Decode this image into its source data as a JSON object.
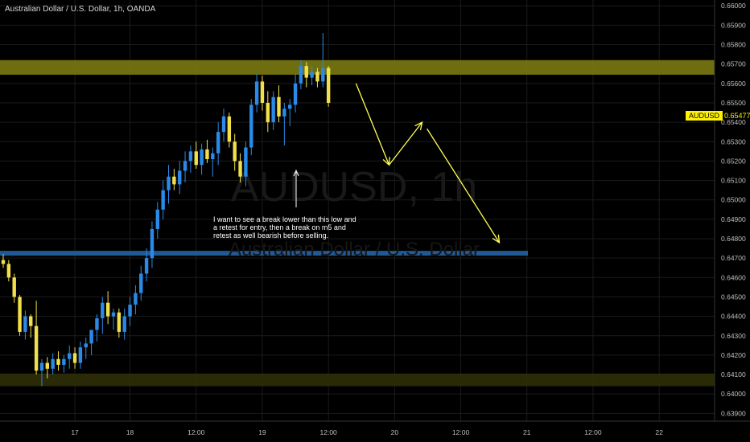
{
  "header": {
    "title": "Australian Dollar / U.S. Dollar, 1h, OANDA"
  },
  "watermark": {
    "symbol": "AUDUSD, 1h",
    "name": "Australian Dollar / U.S. Dollar"
  },
  "last_price": {
    "symbol": "AUDUSD",
    "value": "0.65477"
  },
  "annotation": {
    "lines": [
      "I want to see a break lower than this low and",
      "a retest for entry, then a break on m5 and",
      "retest as well bearish before selling."
    ]
  },
  "colors": {
    "background": "#000000",
    "bull": "#2b8ae8",
    "bear": "#f2e04a",
    "resistance_zone": "#7a7a12",
    "support_zone": "#2f2f08",
    "support_line": "#1f5a96",
    "arrows": "#ffff55",
    "grid": "#1b1b1b"
  },
  "chart_data": {
    "type": "candlestick",
    "symbol": "AUDUSD",
    "interval": "1h",
    "source": "OANDA",
    "ylim": [
      0.6386,
      0.6603
    ],
    "y_ticks": [
      "0.66000",
      "0.65900",
      "0.65800",
      "0.65700",
      "0.65600",
      "0.65500",
      "0.65400",
      "0.65300",
      "0.65200",
      "0.65100",
      "0.65000",
      "0.64900",
      "0.64800",
      "0.64700",
      "0.64600",
      "0.64500",
      "0.64400",
      "0.64300",
      "0.64200",
      "0.64100",
      "0.64000",
      "0.63900"
    ],
    "x_ticks": [
      {
        "label": "17",
        "bar": 13
      },
      {
        "label": "18",
        "bar": 23
      },
      {
        "label": "12:00",
        "bar": 35
      },
      {
        "label": "19",
        "bar": 47
      },
      {
        "label": "12:00",
        "bar": 59
      },
      {
        "label": "20",
        "bar": 71
      },
      {
        "label": "12:00",
        "bar": 83
      },
      {
        "label": "21",
        "bar": 95
      },
      {
        "label": "12:00",
        "bar": 107
      },
      {
        "label": "22",
        "bar": 119
      }
    ],
    "candles": [
      [
        0.6469,
        0.6472,
        0.6465,
        0.6467
      ],
      [
        0.6467,
        0.6469,
        0.6458,
        0.646
      ],
      [
        0.646,
        0.6462,
        0.6447,
        0.645
      ],
      [
        0.645,
        0.6451,
        0.643,
        0.6432
      ],
      [
        0.6432,
        0.6443,
        0.6428,
        0.644
      ],
      [
        0.644,
        0.6441,
        0.6429,
        0.6435
      ],
      [
        0.6435,
        0.6448,
        0.641,
        0.6412
      ],
      [
        0.6412,
        0.6418,
        0.6404,
        0.6416
      ],
      [
        0.6416,
        0.6419,
        0.6408,
        0.6413
      ],
      [
        0.6413,
        0.6421,
        0.641,
        0.6418
      ],
      [
        0.6418,
        0.6422,
        0.6412,
        0.6415
      ],
      [
        0.6415,
        0.642,
        0.6411,
        0.6418
      ],
      [
        0.6418,
        0.6425,
        0.6413,
        0.6421
      ],
      [
        0.6421,
        0.6424,
        0.6413,
        0.6416
      ],
      [
        0.6416,
        0.6427,
        0.6413,
        0.6424
      ],
      [
        0.6424,
        0.6429,
        0.6418,
        0.6426
      ],
      [
        0.6426,
        0.6431,
        0.642,
        0.6433
      ],
      [
        0.6433,
        0.6441,
        0.6427,
        0.6439
      ],
      [
        0.6439,
        0.645,
        0.6431,
        0.6447
      ],
      [
        0.6447,
        0.6453,
        0.6436,
        0.644
      ],
      [
        0.644,
        0.6444,
        0.6433,
        0.6442
      ],
      [
        0.6442,
        0.6444,
        0.6429,
        0.6432
      ],
      [
        0.6432,
        0.6444,
        0.6428,
        0.644
      ],
      [
        0.644,
        0.645,
        0.6435,
        0.6446
      ],
      [
        0.6446,
        0.6456,
        0.6441,
        0.6452
      ],
      [
        0.6452,
        0.6466,
        0.6448,
        0.6462
      ],
      [
        0.6462,
        0.6475,
        0.6458,
        0.647
      ],
      [
        0.647,
        0.6489,
        0.6465,
        0.6485
      ],
      [
        0.6485,
        0.6499,
        0.648,
        0.6495
      ],
      [
        0.6495,
        0.651,
        0.649,
        0.6505
      ],
      [
        0.6505,
        0.6518,
        0.6498,
        0.6512
      ],
      [
        0.6512,
        0.6516,
        0.6505,
        0.6508
      ],
      [
        0.6508,
        0.652,
        0.6503,
        0.6515
      ],
      [
        0.6515,
        0.6525,
        0.6509,
        0.652
      ],
      [
        0.652,
        0.6528,
        0.6514,
        0.6525
      ],
      [
        0.6525,
        0.653,
        0.6516,
        0.6518
      ],
      [
        0.6518,
        0.6529,
        0.6513,
        0.6526
      ],
      [
        0.6526,
        0.6531,
        0.6519,
        0.6521
      ],
      [
        0.6521,
        0.6527,
        0.6512,
        0.6524
      ],
      [
        0.6524,
        0.654,
        0.6518,
        0.6535
      ],
      [
        0.6535,
        0.6547,
        0.653,
        0.6543
      ],
      [
        0.6543,
        0.6545,
        0.6527,
        0.653
      ],
      [
        0.653,
        0.6534,
        0.6515,
        0.652
      ],
      [
        0.652,
        0.6524,
        0.6509,
        0.6512
      ],
      [
        0.6512,
        0.653,
        0.6507,
        0.6527
      ],
      [
        0.6527,
        0.6552,
        0.6523,
        0.6549
      ],
      [
        0.6549,
        0.6565,
        0.6545,
        0.6561
      ],
      [
        0.6561,
        0.6564,
        0.6546,
        0.655
      ],
      [
        0.655,
        0.6556,
        0.6535,
        0.654
      ],
      [
        0.654,
        0.6556,
        0.6536,
        0.6553
      ],
      [
        0.6553,
        0.6559,
        0.654,
        0.6543
      ],
      [
        0.6543,
        0.655,
        0.6528,
        0.6547
      ],
      [
        0.6547,
        0.6552,
        0.6538,
        0.6549
      ],
      [
        0.6549,
        0.6565,
        0.6545,
        0.656
      ],
      [
        0.656,
        0.6572,
        0.6557,
        0.6569
      ],
      [
        0.6569,
        0.6571,
        0.6558,
        0.6563
      ],
      [
        0.6563,
        0.6569,
        0.6559,
        0.6566
      ],
      [
        0.6566,
        0.6568,
        0.6558,
        0.6561
      ],
      [
        0.6561,
        0.6586,
        0.6558,
        0.6568
      ],
      [
        0.6568,
        0.6569,
        0.6548,
        0.655
      ]
    ],
    "zones": [
      {
        "from": 0.65645,
        "to": 0.6572,
        "label": "resistance"
      },
      {
        "from": 0.6404,
        "to": 0.64105,
        "label": "support"
      }
    ],
    "levels": [
      {
        "value": 0.64725,
        "label": "support line"
      }
    ],
    "projection_path": [
      {
        "bar": 64,
        "price": 0.656
      },
      {
        "bar": 70,
        "price": 0.6518
      },
      {
        "bar": 76,
        "price": 0.654
      },
      {
        "bar": 90,
        "price": 0.6478
      }
    ]
  }
}
